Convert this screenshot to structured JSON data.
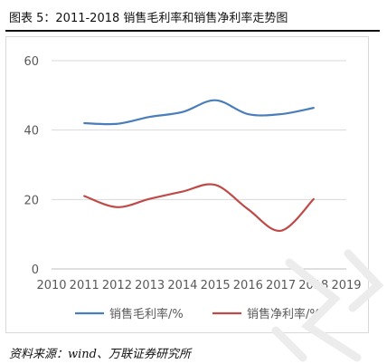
{
  "header": {
    "title": "图表 5：2011-2018 销售毛利率和销售净利率走势图"
  },
  "footer": {
    "source": "资料来源：wind、万联证券研究所"
  },
  "colors": {
    "gross_margin": "#4a7ebb",
    "net_margin": "#be4b48",
    "grid": "#d9d9d9",
    "axis_text": "#595959"
  },
  "chart_data": {
    "type": "line",
    "title": "",
    "xlabel": "",
    "ylabel": "",
    "x_ticks": [
      "2010",
      "2011",
      "2012",
      "2013",
      "2014",
      "2015",
      "2016",
      "2017",
      "2018",
      "2019"
    ],
    "y_ticks": [
      "0",
      "20",
      "40",
      "60"
    ],
    "xlim": [
      2010,
      2019
    ],
    "ylim": [
      0,
      60
    ],
    "grid": true,
    "legend_position": "bottom",
    "x": [
      2011,
      2012,
      2013,
      2014,
      2015,
      2016,
      2017,
      2018
    ],
    "series": [
      {
        "name": "销售毛利率/%",
        "color": "#4a7ebb",
        "values": [
          42.0,
          41.8,
          43.8,
          45.2,
          48.6,
          44.6,
          44.6,
          46.4
        ]
      },
      {
        "name": "销售净利率/%",
        "color": "#be4b48",
        "values": [
          21.0,
          17.8,
          20.2,
          22.3,
          24.2,
          17.2,
          11.0,
          20.1
        ]
      }
    ]
  }
}
